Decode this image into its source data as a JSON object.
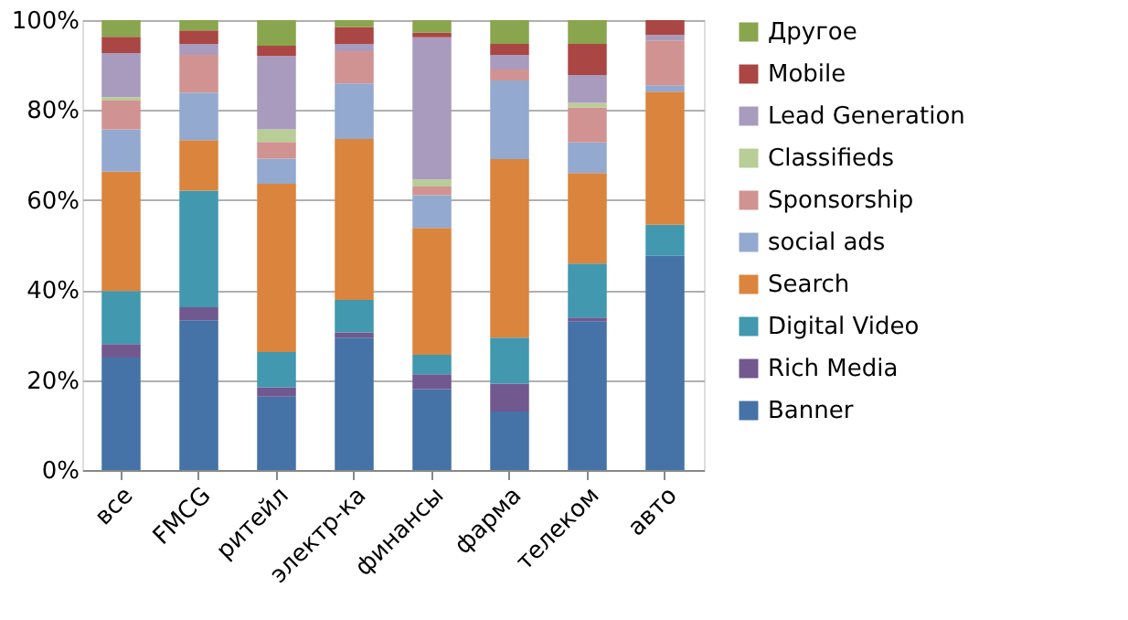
{
  "chart_data": {
    "type": "bar",
    "stacked": true,
    "categories": [
      "все",
      "FMCG",
      "ритейл",
      "электр-ка",
      "финансы",
      "фарма",
      "телеком",
      "авто"
    ],
    "series": [
      {
        "name": "Banner",
        "color": "#4572a7",
        "values": [
          25,
          33.3,
          16.3,
          29.4,
          18.0,
          13.0,
          33.1,
          47.6
        ]
      },
      {
        "name": "Rich Media",
        "color": "#71588f",
        "values": [
          3,
          2.9,
          2.1,
          1.2,
          3.3,
          6.2,
          0.8,
          0
        ]
      },
      {
        "name": "Digital Video",
        "color": "#4198af",
        "values": [
          11.8,
          25.9,
          7.8,
          7.2,
          4.3,
          10.2,
          12.0,
          6.9
        ]
      },
      {
        "name": "Search",
        "color": "#db843d",
        "values": [
          26.5,
          11.2,
          37.4,
          35.8,
          28.2,
          39.7,
          20.1,
          29.6
        ]
      },
      {
        "name": "social ads",
        "color": "#93a9cf",
        "values": [
          9.4,
          10.6,
          5.6,
          12.3,
          7.3,
          17.5,
          6.8,
          1.4
        ]
      },
      {
        "name": "Sponsorship",
        "color": "#d19392",
        "values": [
          6.4,
          8.4,
          3.7,
          7.2,
          1.9,
          2.4,
          7.8,
          10.0
        ]
      },
      {
        "name": "Classifieds",
        "color": "#b9cd96",
        "values": [
          0.8,
          0,
          2.8,
          0,
          1.6,
          0,
          1.0,
          0
        ]
      },
      {
        "name": "Lead Generation",
        "color": "#a99bbd",
        "values": [
          9.8,
          2.4,
          16.3,
          1.6,
          31.6,
          3.3,
          6.2,
          1.2
        ]
      },
      {
        "name": "Mobile",
        "color": "#aa4643",
        "values": [
          3.6,
          3.0,
          2.3,
          3.8,
          1.0,
          2.4,
          6.9,
          3.3
        ]
      },
      {
        "name": "Другое",
        "color": "#89a54e",
        "values": [
          3.7,
          2.3,
          5.7,
          1.5,
          2.8,
          5.3,
          5.3,
          0
        ]
      }
    ],
    "ylim": [
      0,
      100
    ],
    "yticks": [
      {
        "value": 0,
        "label": "0%"
      },
      {
        "value": 20,
        "label": "20%"
      },
      {
        "value": 40,
        "label": "40%"
      },
      {
        "value": 60,
        "label": "60%"
      },
      {
        "value": 80,
        "label": "80%"
      },
      {
        "value": 100,
        "label": "100%"
      }
    ],
    "grid": "y",
    "legend": "right"
  }
}
